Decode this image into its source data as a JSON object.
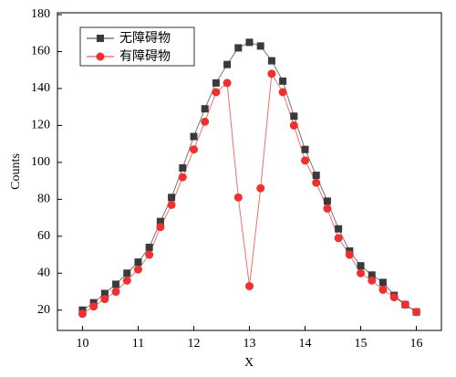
{
  "chart_data": {
    "type": "line",
    "x_label": "X",
    "y_label": "Counts",
    "x": [
      10,
      10.2,
      10.4,
      10.6,
      10.8,
      11,
      11.2,
      11.4,
      11.6,
      11.8,
      12,
      12.2,
      12.4,
      12.6,
      12.8,
      13,
      13.2,
      13.4,
      13.6,
      13.8,
      14,
      14.2,
      14.4,
      14.6,
      14.8,
      15,
      15.2,
      15.4,
      15.6,
      15.8,
      16
    ],
    "series": [
      {
        "name": "无障碍物",
        "color": "#3a3a3a",
        "marker": "square",
        "values": [
          20,
          24,
          29,
          34,
          40,
          46,
          54,
          68,
          81,
          97,
          114,
          129,
          143,
          153,
          162,
          165,
          163,
          155,
          144,
          125,
          107,
          93,
          79,
          64,
          52,
          44,
          39,
          35,
          28,
          23,
          19
        ]
      },
      {
        "name": "有障碍物",
        "color": "#f03030",
        "marker": "circle",
        "values": [
          18,
          22,
          26,
          30,
          36,
          42,
          50,
          65,
          77,
          92,
          107,
          122,
          138,
          143,
          81,
          33,
          86,
          148,
          138,
          120,
          101,
          89,
          75,
          59,
          50,
          40,
          36,
          31,
          27,
          23,
          19
        ]
      }
    ],
    "xlim": [
      9.55,
      16.45
    ],
    "ylim": [
      9,
      181
    ],
    "xticks": [
      10,
      11,
      12,
      13,
      14,
      15,
      16
    ],
    "yticks": [
      20,
      40,
      60,
      80,
      100,
      120,
      140,
      160,
      180
    ],
    "legend": "upper left"
  }
}
